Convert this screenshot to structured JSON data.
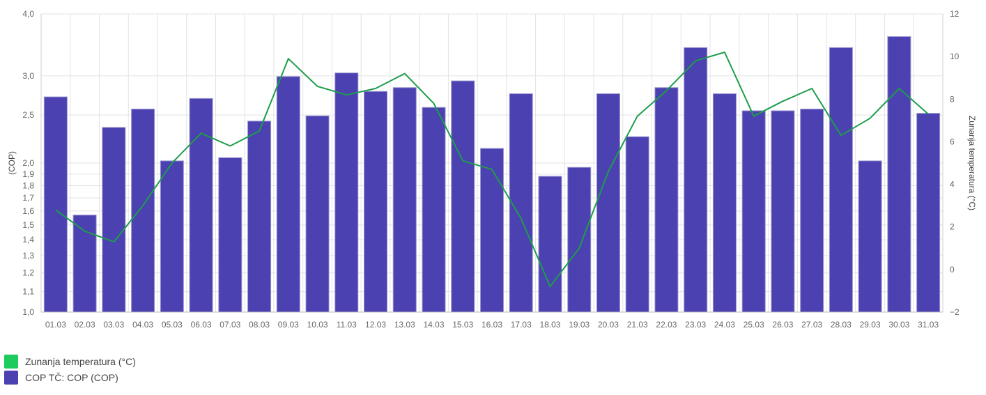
{
  "chart_data": {
    "type": "bar",
    "categories": [
      "01.03",
      "02.03",
      "03.03",
      "04.03",
      "05.03",
      "06.03",
      "07.03",
      "08.03",
      "09.03",
      "10.03",
      "11.03",
      "12.03",
      "13.03",
      "14.03",
      "15.03",
      "16.03",
      "17.03",
      "18.03",
      "19.03",
      "20.03",
      "21.03",
      "22.03",
      "23.03",
      "24.03",
      "25.03",
      "26.03",
      "27.03",
      "28.03",
      "29.03",
      "30.03",
      "31.03"
    ],
    "series": [
      {
        "name": "COP TČ: COP (COP)",
        "type": "bar",
        "axis": "left",
        "color": "#4b41b1",
        "values": [
          2.72,
          1.57,
          2.36,
          2.57,
          2.02,
          2.7,
          2.05,
          2.43,
          2.99,
          2.49,
          3.04,
          2.79,
          2.84,
          2.59,
          2.93,
          2.14,
          2.76,
          1.88,
          1.96,
          2.76,
          2.26,
          2.84,
          3.42,
          2.76,
          2.55,
          2.55,
          2.57,
          3.42,
          2.02,
          3.6,
          2.52
        ]
      },
      {
        "name": "Zunanja temperatura (°C)",
        "type": "line",
        "axis": "right",
        "color": "#1e9d4c",
        "values": [
          2.8,
          1.8,
          1.3,
          3.0,
          5.0,
          6.4,
          5.8,
          6.5,
          9.9,
          8.6,
          8.2,
          8.5,
          9.2,
          7.8,
          5.1,
          4.7,
          2.4,
          -0.8,
          1.0,
          4.6,
          7.2,
          8.4,
          9.8,
          10.2,
          7.2,
          7.9,
          8.5,
          6.3,
          7.1,
          8.5,
          7.3
        ]
      }
    ],
    "yaxis_left": {
      "label": "(COP)",
      "scale": "log",
      "range": [
        1.0,
        4.0
      ],
      "ticks": [
        1.0,
        1.1,
        1.2,
        1.3,
        1.4,
        1.5,
        1.6,
        1.7,
        1.8,
        1.9,
        2.0,
        2.5,
        3.0,
        4.0
      ],
      "tick_labels": [
        "1,0",
        "1,1",
        "1,2",
        "1,3",
        "1,4",
        "1,5",
        "1,6",
        "1,7",
        "1,8",
        "1,9",
        "2,0",
        "2,5",
        "3,0",
        "4,0"
      ]
    },
    "yaxis_right": {
      "label": "Zunanja temperatura (°C)",
      "range": [
        -2,
        12
      ],
      "ticks": [
        -2,
        0,
        2,
        4,
        6,
        8,
        10,
        12
      ],
      "tick_labels": [
        "−2",
        "0",
        "2",
        "4",
        "6",
        "8",
        "10",
        "12"
      ]
    },
    "grid": true,
    "legend": {
      "position": "bottom-left",
      "items": [
        {
          "label": "Zunanja temperatura (°C)",
          "color": "#1ecb5d"
        },
        {
          "label": "COP TČ: COP (COP)",
          "color": "#4b41b1"
        }
      ]
    }
  }
}
